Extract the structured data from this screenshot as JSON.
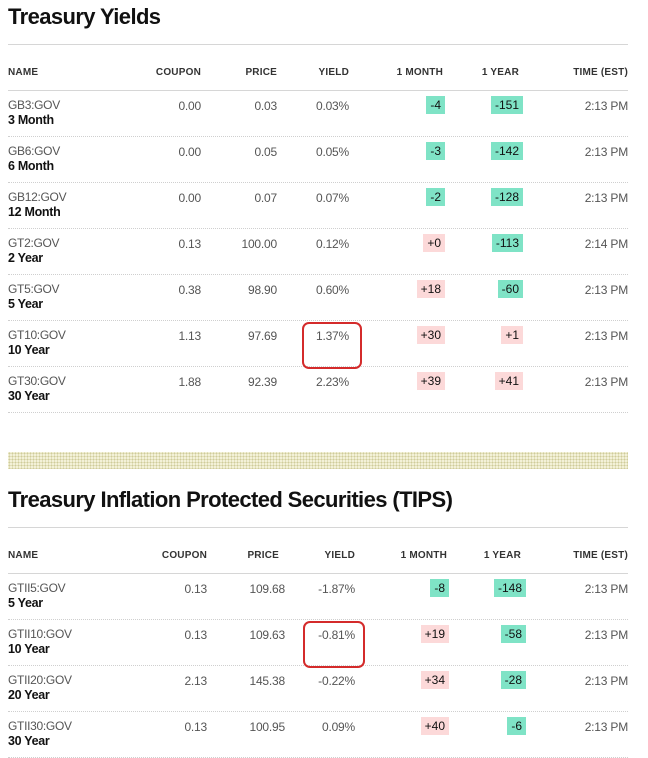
{
  "treasury": {
    "title": "Treasury Yields",
    "headers": {
      "name": "NAME",
      "coupon": "COUPON",
      "price": "PRICE",
      "yield": "YIELD",
      "month": "1 MONTH",
      "year": "1 YEAR",
      "time": "TIME (EST)"
    },
    "rows": [
      {
        "ticker": "GB3:GOV",
        "term": "3 Month",
        "coupon": "0.00",
        "price": "0.03",
        "yield": "0.03%",
        "month": "-4",
        "month_dir": "neg",
        "year": "-151",
        "year_dir": "neg",
        "time": "2:13 PM"
      },
      {
        "ticker": "GB6:GOV",
        "term": "6 Month",
        "coupon": "0.00",
        "price": "0.05",
        "yield": "0.05%",
        "month": "-3",
        "month_dir": "neg",
        "year": "-142",
        "year_dir": "neg",
        "time": "2:13 PM"
      },
      {
        "ticker": "GB12:GOV",
        "term": "12 Month",
        "coupon": "0.00",
        "price": "0.07",
        "yield": "0.07%",
        "month": "-2",
        "month_dir": "neg",
        "year": "-128",
        "year_dir": "neg",
        "time": "2:13 PM"
      },
      {
        "ticker": "GT2:GOV",
        "term": "2 Year",
        "coupon": "0.13",
        "price": "100.00",
        "yield": "0.12%",
        "month": "+0",
        "month_dir": "pos",
        "year": "-113",
        "year_dir": "neg",
        "time": "2:14 PM"
      },
      {
        "ticker": "GT5:GOV",
        "term": "5 Year",
        "coupon": "0.38",
        "price": "98.90",
        "yield": "0.60%",
        "month": "+18",
        "month_dir": "pos",
        "year": "-60",
        "year_dir": "neg",
        "time": "2:13 PM"
      },
      {
        "ticker": "GT10:GOV",
        "term": "10 Year",
        "coupon": "1.13",
        "price": "97.69",
        "yield": "1.37%",
        "month": "+30",
        "month_dir": "pos",
        "year": "+1",
        "year_dir": "pos",
        "time": "2:13 PM",
        "highlight": true
      },
      {
        "ticker": "GT30:GOV",
        "term": "30 Year",
        "coupon": "1.88",
        "price": "92.39",
        "yield": "2.23%",
        "month": "+39",
        "month_dir": "pos",
        "year": "+41",
        "year_dir": "pos",
        "time": "2:13 PM"
      }
    ]
  },
  "tips": {
    "title": "Treasury Inflation Protected Securities (TIPS)",
    "headers": {
      "name": "NAME",
      "coupon": "COUPON",
      "price": "PRICE",
      "yield": "YIELD",
      "month": "1 MONTH",
      "year": "1 YEAR",
      "time": "TIME (EST)"
    },
    "rows": [
      {
        "ticker": "GTII5:GOV",
        "term": "5 Year",
        "coupon": "0.13",
        "price": "109.68",
        "yield": "-1.87%",
        "month": "-8",
        "month_dir": "neg",
        "year": "-148",
        "year_dir": "neg",
        "time": "2:13 PM"
      },
      {
        "ticker": "GTII10:GOV",
        "term": "10 Year",
        "coupon": "0.13",
        "price": "109.63",
        "yield": "-0.81%",
        "month": "+19",
        "month_dir": "pos",
        "year": "-58",
        "year_dir": "neg",
        "time": "2:13 PM",
        "highlight": true
      },
      {
        "ticker": "GTII20:GOV",
        "term": "20 Year",
        "coupon": "2.13",
        "price": "145.38",
        "yield": "-0.22%",
        "month": "+34",
        "month_dir": "pos",
        "year": "-28",
        "year_dir": "neg",
        "time": "2:13 PM"
      },
      {
        "ticker": "GTII30:GOV",
        "term": "30 Year",
        "coupon": "0.13",
        "price": "100.95",
        "yield": "0.09%",
        "month": "+40",
        "month_dir": "pos",
        "year": "-6",
        "year_dir": "neg",
        "time": "2:13 PM"
      }
    ]
  },
  "colors": {
    "negative": "#7fe3c6",
    "positive": "#fcd9d9",
    "highlight_circle": "#d42b2b"
  }
}
